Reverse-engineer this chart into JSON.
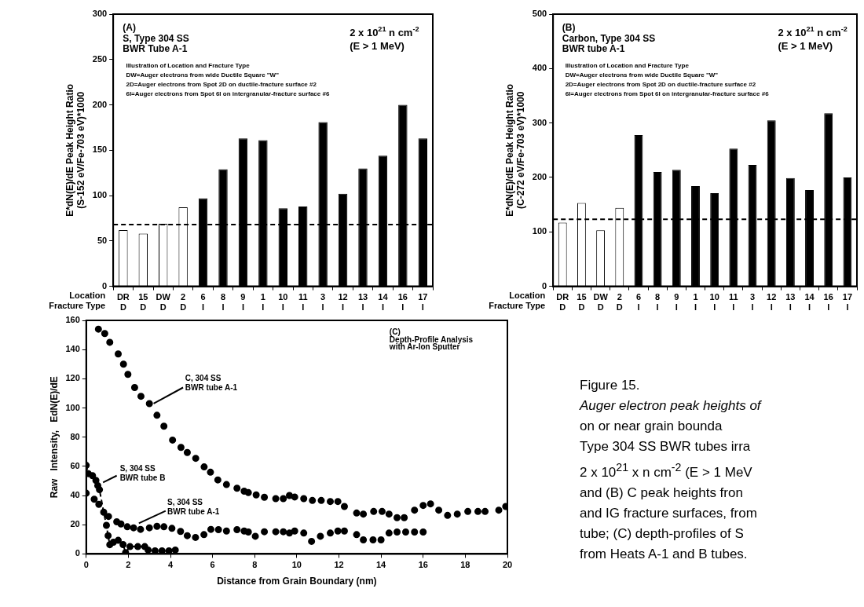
{
  "chart_data": [
    {
      "type": "bar",
      "ylabel": "E*dN(E)/dE Peak Height Ratio\n(S-152 eV/Fe-703 eV)*1000",
      "xlabel": "Location\nFracture Type",
      "categories": [
        "DR\nD",
        "15\nD",
        "DW\nD",
        "2\nD",
        "6\nI",
        "8\nI",
        "9\nI",
        "1\nI",
        "10\nI",
        "11\nI",
        "3\nI",
        "12\nI",
        "13\nI",
        "14\nI",
        "16\nI",
        "17\nI"
      ],
      "values": [
        62,
        58,
        69,
        87,
        97,
        129,
        163,
        161,
        86,
        88,
        181,
        102,
        130,
        144,
        200,
        163
      ],
      "colors": [
        "#ffffff",
        "#ffffff",
        "#ffffff",
        "#ffffff",
        "#000000",
        "#000000",
        "#000000",
        "#000000",
        "#000000",
        "#000000",
        "#000000",
        "#000000",
        "#000000",
        "#000000",
        "#000000",
        "#000000"
      ],
      "ylim": [
        0,
        300
      ],
      "yticks": [
        0,
        50,
        100,
        150,
        200,
        250,
        300
      ],
      "ref_lines": [
        {
          "axis": "y",
          "value": 68,
          "color": "#000000",
          "line_style": "dashed"
        }
      ],
      "annotations": [
        "(A)",
        "S, Type 304 SS",
        "BWR Tube A-1",
        "2 x 10$^{21}$ n cm$^{-2}$",
        "(E > 1 MeV)",
        "Illustration of Location and Fracture Type",
        "DW=Auger electrons from wide Ductile Square \"W\"",
        "2D=Auger electrons from Spot 2D on ductile-fracture surface #2",
        "6I=Auger electrons from Spot 6I on intergranular-fracture surface #6"
      ]
    },
    {
      "type": "bar",
      "ylabel": "E*dN(E)/dE Peak Height Ratio\n(C-272 eV/Fe-703 eV)*1000",
      "xlabel": "Location\nFracture Type",
      "categories": [
        "DR\nD",
        "15\nD",
        "DW\nD",
        "2\nD",
        "6\nI",
        "8\nI",
        "9\nI",
        "1\nI",
        "10\nI",
        "11\nI",
        "3\nI",
        "12\nI",
        "13\nI",
        "14\nI",
        "16\nI",
        "17\nI"
      ],
      "values": [
        117,
        153,
        103,
        144,
        278,
        210,
        214,
        184,
        171,
        253,
        223,
        305,
        199,
        177,
        318,
        200
      ],
      "colors": [
        "#ffffff",
        "#ffffff",
        "#ffffff",
        "#ffffff",
        "#000000",
        "#000000",
        "#000000",
        "#000000",
        "#000000",
        "#000000",
        "#000000",
        "#000000",
        "#000000",
        "#000000",
        "#000000",
        "#000000"
      ],
      "ylim": [
        0,
        500
      ],
      "yticks": [
        0,
        100,
        200,
        300,
        400,
        500
      ],
      "ref_lines": [
        {
          "axis": "y",
          "value": 123,
          "color": "#000000",
          "line_style": "dashed"
        }
      ],
      "annotations": [
        "(B)",
        "Carbon, Type 304 SS",
        "BWR tube A-1",
        "2 x 10$^{21}$ n cm$^{-2}$",
        "(E > 1 MeV)",
        "Illustration of Location and Fracture Type",
        "DW=Auger electrons from wide Ductile Square \"W\"",
        "2D=Auger electrons from Spot 2D on ductile-fracture surface #2",
        "6I=Auger electrons from Spot 6I on intergranular-fracture surface #6"
      ]
    },
    {
      "type": "scatter",
      "xlabel": "Distance from Grain Boundary (nm)",
      "ylabel": "Raw   Intensity,   EdN(E)/dE",
      "marker": "circle",
      "xlim": [
        0,
        20
      ],
      "xticks": [
        0,
        2,
        4,
        6,
        8,
        10,
        12,
        14,
        16,
        18,
        20
      ],
      "ylim": [
        0,
        160
      ],
      "yticks": [
        0,
        20,
        40,
        60,
        80,
        100,
        120,
        140,
        160
      ],
      "series": [
        {
          "name": "C, 304 SS\nBWR tube A-1",
          "type": "scatter",
          "color": "#000000",
          "x": [
            0.58,
            0.88,
            1.12,
            1.52,
            1.77,
            1.98,
            2.3,
            2.6,
            3.0,
            3.36,
            3.69,
            4.1,
            4.5,
            4.8,
            5.2,
            5.6,
            5.9,
            6.25,
            6.66,
            7.16,
            7.5,
            7.7,
            8.07,
            8.46,
            9.0,
            9.36,
            9.65,
            9.9,
            10.33,
            10.74,
            11.16,
            11.59,
            11.95,
            12.26,
            12.84,
            13.16,
            13.65,
            14.05,
            14.38,
            14.76,
            15.1,
            15.59,
            16.0,
            16.35,
            16.74,
            17.16,
            17.62,
            18.12,
            18.6,
            18.94,
            19.59,
            19.92
          ],
          "values": [
            154,
            151,
            145,
            137,
            130,
            123,
            114,
            108,
            103,
            95,
            87.5,
            78,
            73,
            69.5,
            65.5,
            59.6,
            56,
            50.7,
            47.5,
            45,
            43,
            42,
            40.4,
            38.8,
            37.9,
            37.9,
            40,
            39,
            37.9,
            36.6,
            36.6,
            35.9,
            35.9,
            32.5,
            28,
            27.3,
            29.1,
            29.1,
            27.3,
            24.8,
            24.8,
            30,
            33.2,
            34.3,
            30,
            26.4,
            27.3,
            29.1,
            29.1,
            29.1,
            30,
            32.5
          ]
        },
        {
          "name": "S, 304 SS\nBWR tube B",
          "type": "line",
          "line_style": "dashed",
          "color": "#000000",
          "x": [
            0,
            0.1,
            0.3,
            0.46,
            0.55,
            0.63,
            0.83,
            0.96,
            1.04,
            1.12,
            1.29,
            1.52,
            1.75,
            1.87,
            2.08,
            2.45,
            2.78,
            2.94,
            3.27,
            3.6,
            3.93,
            4.23
          ],
          "values": [
            60.7,
            55,
            53.6,
            50.4,
            46.8,
            44,
            28.6,
            19.6,
            12.5,
            6.3,
            8,
            9.3,
            6.4,
            0.9,
            5,
            5,
            5,
            2.7,
            2.1,
            2.1,
            2.1,
            2.7
          ]
        },
        {
          "name": "S, 304 SS\nBWR tube A-1",
          "type": "scatter",
          "color": "#000000",
          "x": [
            0,
            0.38,
            0.6,
            1.06,
            1.45,
            1.65,
            1.95,
            2.25,
            2.58,
            3.0,
            3.36,
            3.69,
            4.07,
            4.48,
            4.8,
            5.19,
            5.59,
            5.92,
            6.28,
            6.66,
            7.16,
            7.5,
            7.7,
            8.03,
            8.46,
            9.0,
            9.36,
            9.65,
            9.9,
            10.33,
            10.7,
            11.12,
            11.59,
            11.95,
            12.26,
            12.84,
            13.16,
            13.62,
            14.0,
            14.38,
            14.76,
            15.17,
            15.59,
            16.0
          ],
          "values": [
            41.6,
            37.5,
            34,
            25.7,
            22,
            20.5,
            18.6,
            17.9,
            16.8,
            17.9,
            18.9,
            18.6,
            17.5,
            15.4,
            12.5,
            11.3,
            13.2,
            16.8,
            16.6,
            15.7,
            16.6,
            15.7,
            15,
            12.1,
            15.2,
            15.2,
            15.2,
            14.3,
            15.7,
            14.3,
            8.6,
            12.1,
            14.3,
            15.7,
            15.7,
            13.2,
            9.6,
            9.6,
            9.6,
            14.3,
            15,
            15,
            15,
            15
          ]
        }
      ],
      "annotations": [
        "(C)",
        "Depth-Profile Analysis",
        "with Ar-Ion Sputter"
      ]
    },
    {
      "type": "other",
      "title": "Figure 15.",
      "annotations": [
        "Auger electron peak heights of",
        "on or near grain bounda",
        "Type 304 SS BWR tubes irra",
        "2 x 10$^{21}$ x n cm$^{-2}$ (E > 1 MeV",
        "and (B) C peak heights fron",
        "and IG fracture surfaces, from",
        "tube; (C) depth-profiles of S",
        "from Heats A-1 and B tubes."
      ]
    }
  ]
}
